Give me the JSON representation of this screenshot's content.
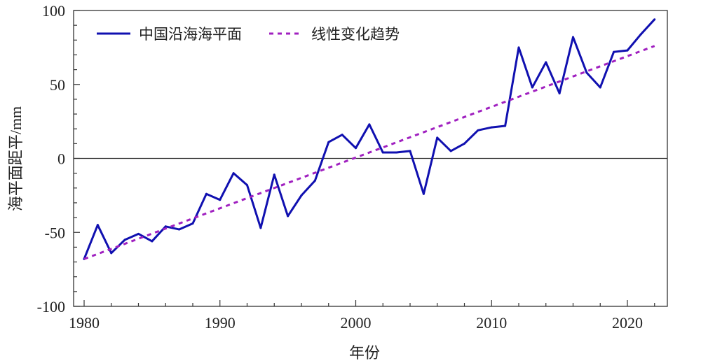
{
  "chart_data": {
    "type": "line",
    "xlabel": "年份",
    "ylabel": "海平面距平/mm",
    "xlim": [
      1979.2,
      2023
    ],
    "ylim": [
      -100,
      100
    ],
    "xticks": [
      1980,
      1990,
      2000,
      2010,
      2020
    ],
    "yticks": [
      -100,
      -50,
      0,
      50,
      100
    ],
    "grid": false,
    "legend": "top-left",
    "zero_line": true,
    "series": [
      {
        "name": "中国沿海海平面",
        "color": "#1010b0",
        "style": "solid",
        "x": [
          1980,
          1981,
          1982,
          1983,
          1984,
          1985,
          1986,
          1987,
          1988,
          1989,
          1990,
          1991,
          1992,
          1993,
          1994,
          1995,
          1996,
          1997,
          1998,
          1999,
          2000,
          2001,
          2002,
          2003,
          2004,
          2005,
          2006,
          2007,
          2008,
          2009,
          2010,
          2011,
          2012,
          2013,
          2014,
          2015,
          2016,
          2017,
          2018,
          2019,
          2020,
          2021,
          2022
        ],
        "y": [
          -68,
          -45,
          -64,
          -55,
          -51,
          -56,
          -46,
          -48,
          -44,
          -24,
          -28,
          -10,
          -18,
          -47,
          -11,
          -39,
          -25,
          -15,
          11,
          16,
          7,
          23,
          4,
          4,
          5,
          -24,
          14,
          5,
          10,
          19,
          21,
          22,
          75,
          48,
          65,
          44,
          82,
          58,
          48,
          72,
          73,
          84,
          94
        ]
      },
      {
        "name": "线性变化趋势",
        "color": "#a020c0",
        "style": "dashed",
        "x": [
          1980,
          2022
        ],
        "y": [
          -68,
          76
        ]
      }
    ]
  }
}
